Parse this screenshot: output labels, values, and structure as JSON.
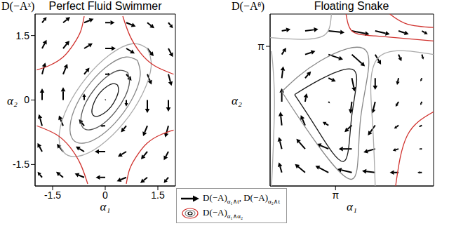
{
  "chart_data": [
    {
      "type": "vector_field",
      "title": "Perfect Fluid Swimmer",
      "label": "D(−Aˣ)",
      "x_label": "α₁",
      "y_label": "α₂",
      "xlim": [
        -2,
        2
      ],
      "ylim": [
        -2,
        2
      ],
      "xticks": [
        -1.5,
        0,
        1.5
      ],
      "yticks": [
        -1.5,
        0,
        1.5
      ],
      "arrows": {
        "color": "#000000",
        "rows": [
          [
            -1.8,
            1.8,
            0.13,
            0.13
          ],
          [
            -1.2,
            1.8,
            0.2,
            0.13
          ],
          [
            -0.6,
            1.8,
            0.27,
            0.09
          ],
          [
            0,
            1.8,
            0.27,
            0
          ],
          [
            0.6,
            1.8,
            0.27,
            -0.09
          ],
          [
            1.2,
            1.8,
            0.2,
            -0.13
          ],
          [
            1.8,
            1.8,
            0.13,
            -0.13
          ],
          [
            -1.8,
            1.2,
            0.13,
            0.2
          ],
          [
            -1.2,
            1.2,
            0.18,
            0.18
          ],
          [
            -0.6,
            1.2,
            0.24,
            0.12
          ],
          [
            0,
            1.2,
            0.3,
            0
          ],
          [
            0.6,
            1.2,
            0.24,
            -0.12
          ],
          [
            1.2,
            1.2,
            0.18,
            -0.18
          ],
          [
            1.8,
            1.2,
            0.13,
            -0.2
          ],
          [
            -1.8,
            0.6,
            0.09,
            0.27
          ],
          [
            -1.2,
            0.6,
            0.12,
            0.24
          ],
          [
            -0.6,
            0.6,
            0.15,
            0.15
          ],
          [
            0,
            0.6,
            0.15,
            0
          ],
          [
            0.6,
            0.6,
            0.15,
            -0.15
          ],
          [
            1.2,
            0.6,
            0.12,
            -0.24
          ],
          [
            1.8,
            0.6,
            0.09,
            -0.27
          ],
          [
            -1.8,
            0,
            0,
            0.27
          ],
          [
            -1.2,
            0,
            0,
            0.3
          ],
          [
            -0.6,
            0,
            0,
            0.15
          ],
          [
            0,
            0,
            0.02,
            0.02
          ],
          [
            0.6,
            0,
            0,
            -0.15
          ],
          [
            1.2,
            0,
            0,
            -0.3
          ],
          [
            1.8,
            0,
            0,
            -0.27
          ],
          [
            -1.8,
            -0.6,
            -0.09,
            0.27
          ],
          [
            -1.2,
            -0.6,
            -0.12,
            0.24
          ],
          [
            -0.6,
            -0.6,
            -0.15,
            0.15
          ],
          [
            0,
            -0.6,
            -0.15,
            0
          ],
          [
            0.6,
            -0.6,
            -0.15,
            -0.15
          ],
          [
            1.2,
            -0.6,
            -0.12,
            -0.24
          ],
          [
            1.8,
            -0.6,
            -0.09,
            -0.27
          ],
          [
            -1.8,
            -1.2,
            -0.13,
            0.2
          ],
          [
            -1.2,
            -1.2,
            -0.18,
            0.18
          ],
          [
            -0.6,
            -1.2,
            -0.24,
            0.12
          ],
          [
            0,
            -1.2,
            -0.3,
            0
          ],
          [
            0.6,
            -1.2,
            -0.24,
            -0.12
          ],
          [
            1.2,
            -1.2,
            -0.18,
            -0.18
          ],
          [
            1.8,
            -1.2,
            -0.13,
            -0.2
          ],
          [
            -1.8,
            -1.8,
            -0.13,
            0.13
          ],
          [
            -1.2,
            -1.8,
            -0.2,
            0.13
          ],
          [
            -0.6,
            -1.8,
            -0.27,
            0.09
          ],
          [
            0,
            -1.8,
            -0.27,
            0
          ],
          [
            0.6,
            -1.8,
            -0.27,
            -0.09
          ],
          [
            1.2,
            -1.8,
            -0.2,
            -0.13
          ],
          [
            1.8,
            -1.8,
            -0.13,
            -0.13
          ]
        ]
      },
      "contours": [
        {
          "color": "#1a1a1a",
          "x": [
            0.35,
            0.23,
            0.04,
            -0.16,
            -0.31,
            -0.38,
            -0.35,
            -0.23,
            -0.04,
            0.16,
            0.31,
            0.38,
            0.35
          ],
          "y": [
            0.35,
            0.38,
            0.31,
            0.16,
            -0.04,
            -0.23,
            -0.35,
            -0.38,
            -0.31,
            -0.16,
            0.04,
            0.23,
            0.35
          ]
        },
        {
          "color": "#555555",
          "x": [
            0.64,
            0.41,
            0.07,
            -0.28,
            -0.56,
            -0.69,
            -0.64,
            -0.41,
            -0.07,
            0.28,
            0.56,
            0.69,
            0.64
          ],
          "y": [
            0.64,
            0.69,
            0.56,
            0.28,
            -0.07,
            -0.41,
            -0.64,
            -0.69,
            -0.56,
            -0.28,
            0.07,
            0.41,
            0.64
          ]
        },
        {
          "color": "#888888",
          "x": [
            0.92,
            0.59,
            0.11,
            -0.41,
            -0.82,
            -1.0,
            -0.92,
            -0.59,
            -0.11,
            0.41,
            0.82,
            1.0,
            0.92
          ],
          "y": [
            0.92,
            1.0,
            0.82,
            0.41,
            -0.11,
            -0.59,
            -0.92,
            -1.0,
            -0.82,
            -0.41,
            0.11,
            0.59,
            0.92
          ]
        },
        {
          "color": "#aaaaaa",
          "x": [
            1.2,
            0.78,
            0.14,
            -0.53,
            -1.06,
            -1.31,
            -1.2,
            -0.78,
            -0.14,
            0.53,
            1.06,
            1.31,
            1.2
          ],
          "y": [
            1.2,
            1.31,
            1.06,
            0.53,
            -0.14,
            -0.78,
            -1.2,
            -1.31,
            -1.06,
            -0.53,
            0.14,
            0.78,
            1.2
          ]
        },
        {
          "color": "#d0312d",
          "x": [
            -1.95,
            -1.6,
            -1.2,
            -0.9,
            -0.7,
            -0.6
          ],
          "y": [
            0.7,
            0.8,
            1.0,
            1.3,
            1.6,
            1.95
          ]
        },
        {
          "color": "#d0312d",
          "x": [
            1.95,
            1.6,
            1.2,
            0.9,
            0.7,
            0.6
          ],
          "y": [
            -0.7,
            -0.8,
            -1.0,
            -1.3,
            -1.6,
            -1.95
          ]
        },
        {
          "color": "#d0312d",
          "x": [
            0.5,
            0.7,
            1.0,
            1.4,
            1.95
          ],
          "y": [
            1.95,
            1.5,
            1.1,
            0.8,
            0.6
          ]
        },
        {
          "color": "#d0312d",
          "x": [
            -0.5,
            -0.7,
            -1.0,
            -1.4,
            -1.95
          ],
          "y": [
            -1.95,
            -1.5,
            -1.1,
            -0.8,
            -0.6
          ]
        }
      ]
    },
    {
      "type": "vector_field",
      "title": "Floating Snake",
      "label": "D(−Aᶿ)",
      "x_label": "α₁",
      "y_label": "α₂",
      "xlim": [
        0.9,
        6.5
      ],
      "ylim": [
        -1.0,
        4.1
      ],
      "xticks": [
        {
          "value": 3.1416,
          "label": "π"
        }
      ],
      "yticks": [
        {
          "value": 3.1416,
          "label": "π"
        }
      ],
      "arrows": {
        "color": "#000000",
        "rows": [
          [
            1.3,
            3.6,
            0.3,
            0.05
          ],
          [
            2.1,
            3.6,
            0.45,
            0.05
          ],
          [
            2.9,
            3.6,
            0.55,
            -0.05
          ],
          [
            3.7,
            3.6,
            0.6,
            -0.1
          ],
          [
            4.5,
            3.6,
            0.5,
            -0.1
          ],
          [
            5.3,
            3.6,
            0.35,
            -0.1
          ],
          [
            6.1,
            3.6,
            0.2,
            -0.1
          ],
          [
            1.3,
            2.9,
            0.15,
            0.2
          ],
          [
            2.1,
            2.9,
            0.35,
            0.1
          ],
          [
            2.9,
            2.9,
            0.5,
            -0.15
          ],
          [
            3.7,
            2.9,
            0.45,
            -0.35
          ],
          [
            4.5,
            2.9,
            0.2,
            -0.3
          ],
          [
            5.3,
            2.9,
            0.1,
            -0.2
          ],
          [
            6.1,
            2.9,
            0.05,
            -0.15
          ],
          [
            1.3,
            2.2,
            0.05,
            0.35
          ],
          [
            2.1,
            2.2,
            0.2,
            0.2
          ],
          [
            2.9,
            2.2,
            0.25,
            -0.1
          ],
          [
            3.7,
            2.2,
            0.1,
            -0.4
          ],
          [
            4.5,
            2.2,
            0,
            -0.35
          ],
          [
            5.3,
            2.2,
            -0.05,
            -0.2
          ],
          [
            6.1,
            2.2,
            -0.05,
            -0.1
          ],
          [
            1.3,
            1.5,
            0,
            0.4
          ],
          [
            2.1,
            1.5,
            0.05,
            0.25
          ],
          [
            2.9,
            1.5,
            0.05,
            -0.05
          ],
          [
            3.7,
            1.5,
            -0.05,
            -0.35
          ],
          [
            4.5,
            1.5,
            -0.1,
            -0.35
          ],
          [
            5.3,
            1.5,
            -0.1,
            -0.15
          ],
          [
            6.1,
            1.5,
            -0.05,
            -0.1
          ],
          [
            1.3,
            0.8,
            -0.05,
            0.4
          ],
          [
            2.1,
            0.8,
            -0.15,
            0.3
          ],
          [
            2.9,
            0.8,
            -0.2,
            0.1
          ],
          [
            3.7,
            0.8,
            -0.25,
            -0.2
          ],
          [
            4.5,
            0.8,
            -0.25,
            -0.3
          ],
          [
            5.3,
            0.8,
            -0.15,
            -0.1
          ],
          [
            6.1,
            0.8,
            -0.1,
            -0.05
          ],
          [
            1.3,
            0.1,
            -0.1,
            0.35
          ],
          [
            2.1,
            0.1,
            -0.3,
            0.3
          ],
          [
            2.9,
            0.1,
            -0.4,
            0.15
          ],
          [
            3.7,
            0.1,
            -0.45,
            0
          ],
          [
            4.5,
            0.1,
            -0.4,
            -0.1
          ],
          [
            5.3,
            0.1,
            -0.2,
            -0.05
          ],
          [
            6.1,
            0.1,
            -0.1,
            0
          ],
          [
            1.3,
            -0.6,
            -0.1,
            0.3
          ],
          [
            2.1,
            -0.6,
            -0.35,
            0.25
          ],
          [
            2.9,
            -0.6,
            -0.45,
            0.2
          ],
          [
            3.7,
            -0.6,
            -0.5,
            0.1
          ],
          [
            4.5,
            -0.6,
            -0.45,
            0.05
          ],
          [
            5.3,
            -0.6,
            -0.3,
            0
          ],
          [
            6.1,
            -0.6,
            -0.15,
            0
          ]
        ]
      },
      "contours": [
        {
          "color": "#1a1a1a",
          "x": [
            1.74,
            2.6,
            3.78,
            3.7,
            3.42,
            2.5,
            1.74
          ],
          "y": [
            1.71,
            2.15,
            2.43,
            1.1,
            -0.27,
            0.7,
            1.71
          ]
        },
        {
          "color": "#888888",
          "x": [
            1.3,
            2.6,
            4.2,
            4.0,
            3.7,
            2.3,
            1.3
          ],
          "y": [
            1.8,
            2.7,
            3.0,
            1.0,
            -0.8,
            0.5,
            1.8
          ]
        },
        {
          "color": "#aaaaaa",
          "x": [
            0.9,
            2.0,
            2.8,
            3.0
          ],
          "y": [
            3.4,
            3.35,
            3.5,
            4.1
          ]
        },
        {
          "color": "#aaaaaa",
          "x": [
            6.5,
            4.6,
            4.4,
            4.5
          ],
          "y": [
            2.9,
            2.8,
            1.0,
            -1.0
          ]
        },
        {
          "color": "#aaaaaa",
          "x": [
            0.95,
            1.05,
            0.95
          ],
          "y": [
            -1.0,
            1.5,
            3.0
          ]
        },
        {
          "color": "#d0312d",
          "x": [
            3.5,
            3.7,
            4.5,
            6.5
          ],
          "y": [
            4.1,
            3.6,
            3.45,
            3.3
          ]
        },
        {
          "color": "#d0312d",
          "x": [
            5.2,
            5.6,
            6.5
          ],
          "y": [
            -1.0,
            0.5,
            1.2
          ]
        },
        {
          "color": "#d0312d",
          "x": [
            5.0,
            5.6,
            6.5
          ],
          "y": [
            4.1,
            3.8,
            3.7
          ]
        }
      ]
    }
  ],
  "legend_entries": [
    {
      "marker": "arrow",
      "parts": [
        {
          "text": "D(−A)",
          "sub": "α₁∧t"
        },
        {
          "text": ", D(−A)",
          "sub": "α₂∧t"
        }
      ]
    },
    {
      "marker": "contour",
      "parts": [
        {
          "text": "D(−A)",
          "sub": "α₁∧α₂"
        }
      ]
    }
  ]
}
